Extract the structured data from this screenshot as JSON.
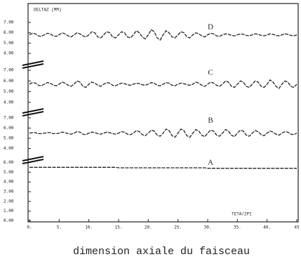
{
  "chart_data": {
    "type": "line",
    "ylabel": "DELTAZ (MM)",
    "xlabel": "TETA/2PI",
    "x": [
      0,
      0.5,
      1,
      1.5,
      2,
      2.5,
      3,
      3.5,
      4,
      4.5,
      5,
      5.5,
      6,
      6.5,
      7,
      7.5,
      8,
      8.5,
      9,
      9.5,
      10,
      10.5,
      11,
      11.5,
      12,
      12.5,
      13,
      13.5,
      14,
      14.5,
      15,
      15.5,
      16,
      16.5,
      17,
      17.5,
      18,
      18.5,
      19,
      19.5,
      20,
      20.5,
      21,
      21.5,
      22,
      22.5,
      23,
      23.5,
      24,
      24.5,
      25,
      25.5,
      26,
      26.5,
      27,
      27.5,
      28,
      28.5,
      29,
      29.5,
      30,
      30.5,
      31,
      31.5,
      32,
      32.5,
      33,
      33.5,
      34,
      34.5,
      35,
      35.5,
      36,
      36.5,
      37,
      37.5,
      38,
      38.5,
      39,
      39.5,
      40,
      40.5,
      41,
      41.5,
      42,
      42.5,
      43,
      43.5,
      44,
      44.5,
      45
    ],
    "xlim": [
      0,
      45
    ],
    "xticks": [
      {
        "value": 0,
        "label": "0."
      },
      {
        "value": 5,
        "label": "5."
      },
      {
        "value": 10,
        "label": "10."
      },
      {
        "value": 15,
        "label": "15."
      },
      {
        "value": 20,
        "label": "20."
      },
      {
        "value": 25,
        "label": "25."
      },
      {
        "value": 30,
        "label": "30."
      },
      {
        "value": 35,
        "label": "35."
      },
      {
        "value": 40,
        "label": "40."
      },
      {
        "value": 45,
        "label": "45"
      }
    ],
    "panels": [
      {
        "label": "D",
        "ylim": [
          3.05,
          8.84
        ],
        "yticks": [
          {
            "value": 4,
            "label": "4.00"
          },
          {
            "value": 5,
            "label": "5.00"
          },
          {
            "value": 6,
            "label": "6.00"
          },
          {
            "value": 7,
            "label": "7.00"
          }
        ],
        "series": [
          {
            "color": "#222",
            "values": [
              5.8,
              5.95,
              5.9,
              5.7,
              5.65,
              5.8,
              5.95,
              5.9,
              5.7,
              5.65,
              5.8,
              6.0,
              5.9,
              5.7,
              5.6,
              5.8,
              6.0,
              5.9,
              5.7,
              5.6,
              5.8,
              6.1,
              6.0,
              5.6,
              5.5,
              5.8,
              6.1,
              6.0,
              5.6,
              5.5,
              5.8,
              6.1,
              6.0,
              5.6,
              5.5,
              5.8,
              6.2,
              6.0,
              5.6,
              5.4,
              5.8,
              6.3,
              6.1,
              5.5,
              5.3,
              5.8,
              6.2,
              6.0,
              5.6,
              5.5,
              5.8,
              6.1,
              6.0,
              5.6,
              5.5,
              5.8,
              6.0,
              5.9,
              5.7,
              5.6,
              5.8,
              5.95,
              5.9,
              5.7,
              5.65,
              5.8,
              5.9,
              5.85,
              5.75,
              5.7,
              5.8,
              5.9,
              5.85,
              5.75,
              5.7,
              5.8,
              5.9,
              5.85,
              5.75,
              5.7,
              5.8,
              5.9,
              5.85,
              5.75,
              5.7,
              5.8,
              5.9,
              5.85,
              5.75,
              5.7,
              5.8
            ]
          }
        ]
      },
      {
        "label": "C",
        "ylim": [
          3.2,
          7.4
        ],
        "yticks": [
          {
            "value": 4,
            "label": "4.00"
          },
          {
            "value": 5,
            "label": "5.00"
          },
          {
            "value": 6,
            "label": "6.00"
          },
          {
            "value": 7,
            "label": "7.00"
          }
        ],
        "series": [
          {
            "color": "#222",
            "values": [
              5.7,
              5.85,
              5.8,
              5.6,
              5.55,
              5.7,
              5.85,
              5.8,
              5.6,
              5.55,
              5.7,
              5.9,
              5.8,
              5.6,
              5.5,
              5.7,
              6.0,
              5.9,
              5.5,
              5.4,
              5.7,
              5.9,
              5.8,
              5.6,
              5.5,
              5.7,
              5.85,
              5.8,
              5.6,
              5.55,
              5.7,
              5.8,
              5.75,
              5.65,
              5.6,
              5.7,
              5.8,
              5.75,
              5.65,
              5.6,
              5.7,
              5.85,
              5.8,
              5.6,
              5.55,
              5.7,
              5.85,
              5.8,
              5.6,
              5.55,
              5.7,
              5.8,
              5.75,
              5.65,
              5.6,
              5.7,
              5.9,
              5.8,
              5.6,
              5.5,
              5.7,
              5.9,
              5.8,
              5.6,
              5.5,
              5.7,
              6.0,
              5.9,
              5.5,
              5.4,
              5.7,
              6.0,
              5.9,
              5.5,
              5.4,
              5.7,
              6.0,
              5.9,
              5.5,
              5.4,
              5.7,
              6.1,
              5.9,
              5.5,
              5.3,
              5.7,
              6.0,
              5.9,
              5.5,
              5.4,
              5.7
            ]
          }
        ]
      },
      {
        "label": "B",
        "ylim": [
          3.0,
          7.4
        ],
        "yticks": [
          {
            "value": 4,
            "label": "4.00"
          },
          {
            "value": 5,
            "label": "5.00"
          },
          {
            "value": 6,
            "label": "6.00"
          },
          {
            "value": 7,
            "label": "7.00"
          }
        ],
        "series": [
          {
            "color": "#222",
            "values": [
              5.5,
              5.55,
              5.55,
              5.45,
              5.45,
              5.5,
              5.55,
              5.55,
              5.45,
              5.45,
              5.5,
              5.6,
              5.55,
              5.45,
              5.4,
              5.5,
              5.65,
              5.6,
              5.4,
              5.35,
              5.5,
              5.6,
              5.55,
              5.45,
              5.4,
              5.5,
              5.6,
              5.55,
              5.45,
              5.4,
              5.5,
              5.65,
              5.6,
              5.4,
              5.35,
              5.5,
              5.75,
              5.65,
              5.35,
              5.25,
              5.5,
              5.8,
              5.7,
              5.3,
              5.2,
              5.5,
              5.9,
              5.75,
              5.25,
              5.1,
              5.5,
              5.9,
              5.75,
              5.25,
              5.1,
              5.5,
              5.85,
              5.7,
              5.3,
              5.15,
              5.5,
              5.8,
              5.7,
              5.3,
              5.2,
              5.5,
              5.85,
              5.7,
              5.3,
              5.15,
              5.5,
              5.8,
              5.7,
              5.3,
              5.2,
              5.5,
              5.75,
              5.65,
              5.35,
              5.25,
              5.5,
              5.7,
              5.6,
              5.4,
              5.3,
              5.5,
              5.65,
              5.6,
              5.4,
              5.35,
              5.5
            ]
          }
        ]
      },
      {
        "label": "A",
        "ylim": [
          -0.1,
          6.1
        ],
        "yticks": [
          {
            "value": 0,
            "label": "0.00"
          },
          {
            "value": 1,
            "label": "1.00"
          },
          {
            "value": 2,
            "label": "2.00"
          },
          {
            "value": 3,
            "label": "3.00"
          },
          {
            "value": 4,
            "label": "4.00"
          },
          {
            "value": 5,
            "label": "5.00"
          },
          {
            "value": 6,
            "label": "6.00"
          }
        ],
        "series": [
          {
            "color": "#222",
            "values": [
              5.5,
              5.5,
              5.5,
              5.5,
              5.5,
              5.5,
              5.5,
              5.5,
              5.5,
              5.5,
              5.5,
              5.5,
              5.5,
              5.5,
              5.5,
              5.5,
              5.5,
              5.5,
              5.5,
              5.5,
              5.5,
              5.5,
              5.5,
              5.5,
              5.5,
              5.5,
              5.5,
              5.5,
              5.5,
              5.5,
              5.45,
              5.45,
              5.45,
              5.45,
              5.45,
              5.45,
              5.45,
              5.45,
              5.45,
              5.45,
              5.45,
              5.45,
              5.45,
              5.45,
              5.45,
              5.45,
              5.45,
              5.45,
              5.45,
              5.45,
              5.45,
              5.45,
              5.45,
              5.45,
              5.45,
              5.45,
              5.45,
              5.45,
              5.45,
              5.45,
              5.4,
              5.4,
              5.4,
              5.4,
              5.4,
              5.4,
              5.4,
              5.4,
              5.4,
              5.4,
              5.4,
              5.4,
              5.4,
              5.4,
              5.4,
              5.4,
              5.4,
              5.4,
              5.4,
              5.4,
              5.4,
              5.4,
              5.4,
              5.4,
              5.4,
              5.4,
              5.4,
              5.4,
              5.4,
              5.4,
              5.4
            ]
          }
        ]
      }
    ]
  },
  "caption": "dimension axiale du faisceau"
}
